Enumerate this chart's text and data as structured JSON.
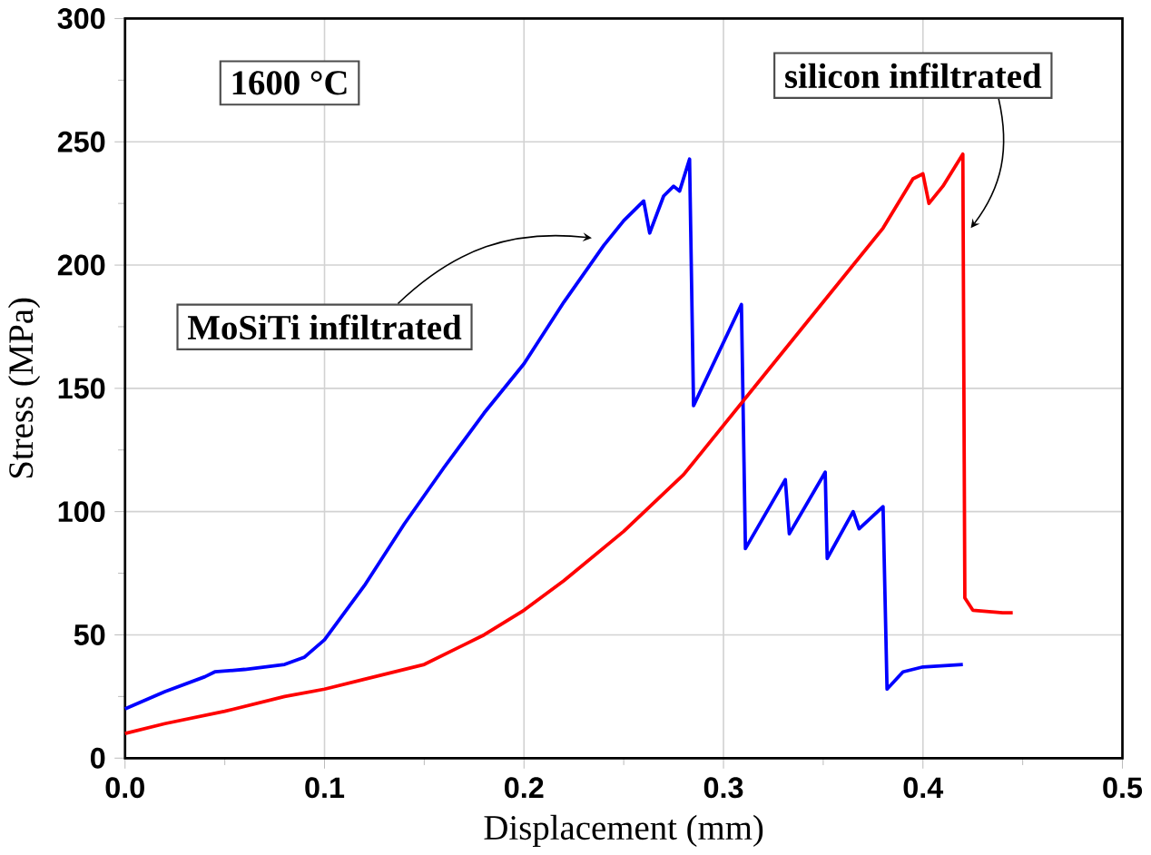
{
  "chart_data": {
    "type": "line",
    "xlabel": "Displacement (mm)",
    "ylabel": "Stress (MPa)",
    "annotations": [
      "1600 °C"
    ],
    "xlim": [
      0,
      0.5
    ],
    "ylim": [
      0,
      300
    ],
    "xticks": [
      {
        "value": 0,
        "label": "0.0"
      },
      0.1,
      0.2,
      0.3,
      0.4,
      0.5
    ],
    "yticks": [
      0,
      50,
      100,
      150,
      200,
      250,
      300
    ],
    "grid": true,
    "legend": false,
    "marker": "none",
    "line_style": "solid",
    "series": [
      {
        "name": "MoSiTi infiltrated",
        "color": "#0000ff",
        "x": [
          0,
          0.02,
          0.04,
          0.045,
          0.06,
          0.08,
          0.09,
          0.1,
          0.12,
          0.14,
          0.16,
          0.18,
          0.2,
          0.22,
          0.24,
          0.25,
          0.26,
          0.263,
          0.27,
          0.275,
          0.278,
          0.283,
          0.285,
          0.309,
          0.311,
          0.331,
          0.333,
          0.351,
          0.352,
          0.365,
          0.368,
          0.38,
          0.382,
          0.39,
          0.4,
          0.42
        ],
        "values": [
          20,
          27,
          33,
          35,
          36,
          38,
          41,
          48,
          70,
          95,
          118,
          140,
          160,
          185,
          208,
          218,
          226,
          213,
          228,
          232,
          230,
          243,
          143,
          184,
          85,
          113,
          91,
          116,
          81,
          100,
          93,
          102,
          28,
          35,
          37,
          38
        ]
      },
      {
        "name": "silicon infiltrated",
        "color": "#ff0000",
        "x": [
          0,
          0.02,
          0.05,
          0.08,
          0.1,
          0.12,
          0.15,
          0.18,
          0.2,
          0.22,
          0.25,
          0.28,
          0.3,
          0.32,
          0.35,
          0.38,
          0.395,
          0.4,
          0.403,
          0.41,
          0.42,
          0.421,
          0.425,
          0.44,
          0.445
        ],
        "values": [
          10,
          14,
          19,
          25,
          28,
          32,
          38,
          50,
          60,
          72,
          92,
          115,
          135,
          155,
          185,
          215,
          235,
          237,
          225,
          232,
          245,
          65,
          60,
          59,
          59
        ]
      }
    ]
  }
}
